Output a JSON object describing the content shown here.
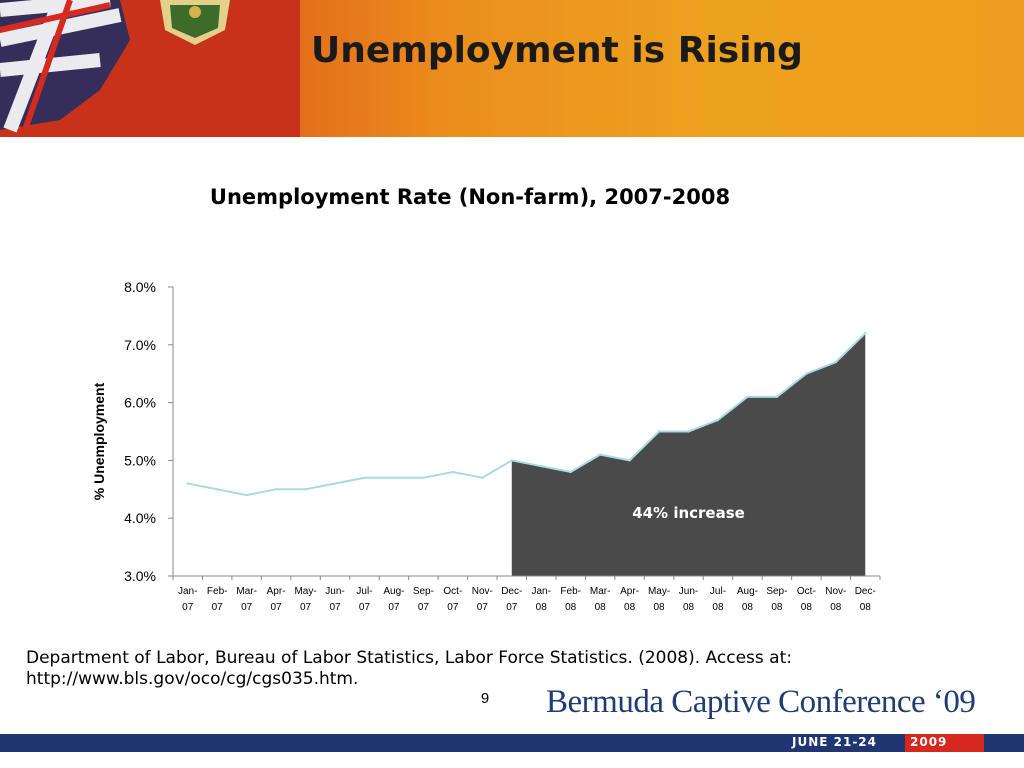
{
  "slide": {
    "title": "Unemployment is Rising",
    "citation_line1": "Department of Labor, Bureau of Labor Statistics, Labor Force Statistics. (2008). Access at:",
    "citation_line2": "http://www.bls.gov/oco/cg/cgs035.htm.",
    "page_number": "9",
    "conference_logo": "Bermuda Captive Conference ‘09",
    "conference_dates": "JUNE 21-24",
    "conference_year": "2009"
  },
  "colors": {
    "header_start": "#c9351b",
    "header_end": "#ee9e1e",
    "line": "#a9dbe3",
    "area": "#4a4a4a",
    "footer_blue": "#1f3673",
    "footer_red": "#d6281e"
  },
  "chart_data": {
    "type": "line",
    "title": "Unemployment Rate (Non-farm), 2007-2008",
    "xlabel": "",
    "ylabel": "% Unemployment",
    "ylim": [
      3.0,
      8.0
    ],
    "y_ticks": [
      "3.0%",
      "4.0%",
      "5.0%",
      "6.0%",
      "7.0%",
      "8.0%"
    ],
    "categories": [
      [
        "Jan-",
        "07"
      ],
      [
        "Feb-",
        "07"
      ],
      [
        "Mar-",
        "07"
      ],
      [
        "Apr-",
        "07"
      ],
      [
        "May-",
        "07"
      ],
      [
        "Jun-",
        "07"
      ],
      [
        "Jul-",
        "07"
      ],
      [
        "Aug-",
        "07"
      ],
      [
        "Sep-",
        "07"
      ],
      [
        "Oct-",
        "07"
      ],
      [
        "Nov-",
        "07"
      ],
      [
        "Dec-",
        "07"
      ],
      [
        "Jan-",
        "08"
      ],
      [
        "Feb-",
        "08"
      ],
      [
        "Mar-",
        "08"
      ],
      [
        "Apr-",
        "08"
      ],
      [
        "May-",
        "08"
      ],
      [
        "Jun-",
        "08"
      ],
      [
        "Jul-",
        "08"
      ],
      [
        "Aug-",
        "08"
      ],
      [
        "Sep-",
        "08"
      ],
      [
        "Oct-",
        "08"
      ],
      [
        "Nov-",
        "08"
      ],
      [
        "Dec-",
        "08"
      ]
    ],
    "series": [
      {
        "values": [
          4.6,
          4.5,
          4.4,
          4.5,
          4.5,
          4.6,
          4.7,
          4.7,
          4.7,
          4.8,
          4.7,
          5.0,
          4.9,
          4.8,
          5.1,
          5.0,
          5.5,
          5.5,
          5.7,
          6.1,
          6.1,
          6.5,
          6.7,
          7.2
        ]
      }
    ],
    "highlight": {
      "start_index": 11,
      "end_index": 23,
      "label": "44% increase"
    },
    "grid": false,
    "legend": "none"
  }
}
